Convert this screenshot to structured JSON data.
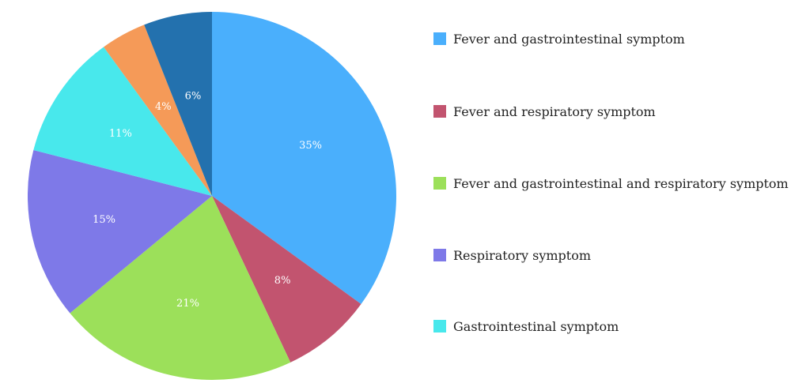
{
  "chart_data": {
    "type": "pie",
    "slices": [
      {
        "label": "Fever and gastrointestinal symptom",
        "value": 35,
        "display": "35%",
        "color": "#4aaffc"
      },
      {
        "label": "Fever and respiratory symptom",
        "value": 8,
        "display": "8%",
        "color": "#c2546f"
      },
      {
        "label": "Fever and gastrointestinal and respiratory symptom",
        "value": 21,
        "display": "21%",
        "color": "#9ce05a"
      },
      {
        "label": "Respiratory symptom",
        "value": 15,
        "display": "15%",
        "color": "#7e79e8"
      },
      {
        "label": "Gastrointestinal symptom",
        "value": 11,
        "display": "11%",
        "color": "#48e8ec"
      },
      {
        "label": "",
        "value": 4,
        "display": "4%",
        "color": "#f59a58"
      },
      {
        "label": "",
        "value": 6,
        "display": "6%",
        "color": "#2371ae"
      }
    ],
    "legend_position": "right",
    "start_angle": "12 o'clock",
    "direction": "clockwise"
  }
}
